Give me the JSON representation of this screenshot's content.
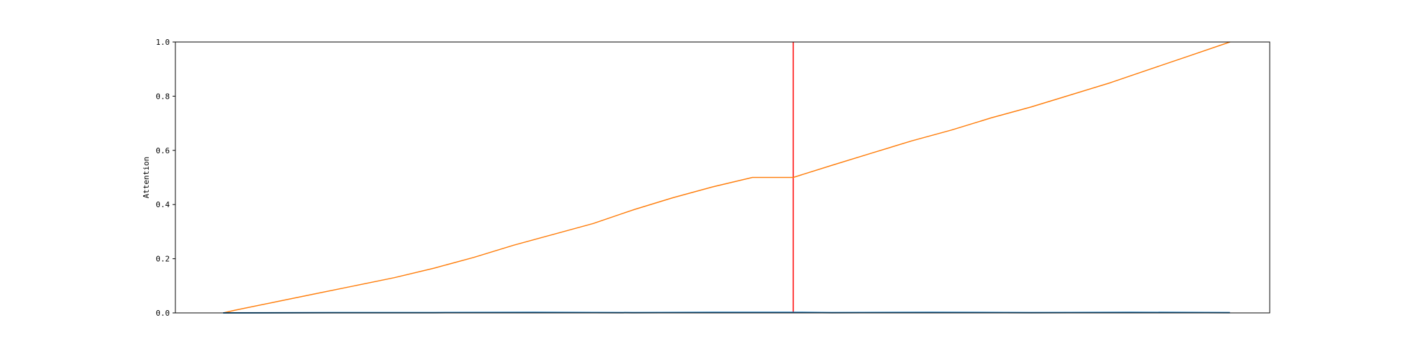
{
  "chart_data": {
    "type": "line",
    "title": "",
    "xlabel": "",
    "ylabel": "Attention",
    "xlim": [
      -0.06,
      1.04
    ],
    "ylim": [
      0.0,
      1.0
    ],
    "yticks": [
      "0.0",
      "0.2",
      "0.4",
      "0.6",
      "0.8",
      "1.0"
    ],
    "grid": false,
    "legend": "none",
    "vline": {
      "x": 0.561,
      "color": "#ff0000"
    },
    "series": [
      {
        "color": "#ff7f0e",
        "x": [
          -0.012,
          0.0,
          0.04,
          0.08,
          0.12,
          0.16,
          0.2,
          0.24,
          0.28,
          0.32,
          0.36,
          0.4,
          0.44,
          0.48,
          0.52,
          0.561,
          0.6,
          0.64,
          0.68,
          0.72,
          0.76,
          0.8,
          0.84,
          0.88,
          0.92,
          0.96,
          1.0
        ],
        "y": [
          0.0,
          0.01,
          0.04,
          0.07,
          0.1,
          0.13,
          0.165,
          0.205,
          0.25,
          0.29,
          0.33,
          0.38,
          0.425,
          0.465,
          0.5,
          0.5,
          0.545,
          0.59,
          0.635,
          0.675,
          0.72,
          0.76,
          0.805,
          0.85,
          0.9,
          0.95,
          1.0
        ]
      },
      {
        "color": "#1f77b4",
        "x": [
          -0.012,
          0.1,
          0.2,
          0.3,
          0.4,
          0.5,
          0.561,
          0.6,
          0.7,
          0.8,
          0.9,
          1.0
        ],
        "y": [
          0.0,
          0.001,
          0.001,
          0.002,
          0.001,
          0.002,
          0.002,
          0.001,
          0.002,
          0.001,
          0.002,
          0.001
        ]
      }
    ]
  }
}
